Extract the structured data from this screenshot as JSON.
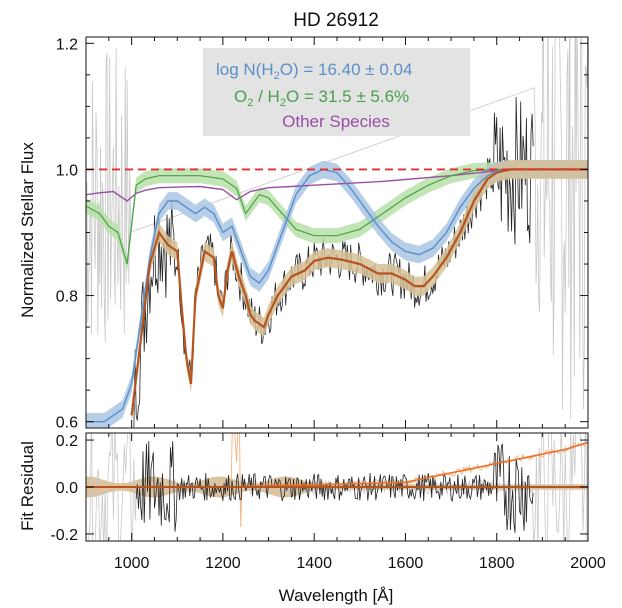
{
  "chart_data": {
    "type": "line",
    "title": "HD 26912",
    "xlabel": "Wavelength [Å]",
    "x_ticks": [
      1000,
      1200,
      1400,
      1600,
      1800,
      2000
    ],
    "xlim": [
      900,
      2000
    ],
    "colors": {
      "observed": "#222222",
      "observed_faint": "#c8c8c8",
      "h2o": "#5b8fc9",
      "h2o_band": "#a9c5e4",
      "o2": "#4aa04a",
      "o2_band": "#b9e0a8",
      "other": "#9b4fa6",
      "total": "#b5541e",
      "total_band": "#d6bf96",
      "residual_orange": "#e8722a",
      "residual_orange_faint": "#f5b98a",
      "unity": "#e03030",
      "legend_box": "#e3e3e3"
    },
    "legend": {
      "placement": "top-center",
      "h2o_prefix": "log N(H",
      "h2o_sub": "2",
      "h2o_suffix": "O) = 16.40 ± 0.04",
      "o2_prefix": "O",
      "o2_sub": "2",
      "o2_mid": " / H",
      "o2_sub2": "2",
      "o2_suffix": "O =   31.5 ±   5.6%",
      "other": "Other Species"
    },
    "panels": [
      {
        "name": "flux",
        "ylabel": "Normalized Stellar Flux",
        "ylim": [
          0.59,
          1.21
        ],
        "y_ticks": [
          0.6,
          0.8,
          1.0,
          1.2
        ],
        "y_tick_labels": [
          "0.6",
          "0.8",
          "1.0",
          "1.2"
        ],
        "unity_line": 1.0,
        "series": [
          {
            "key": "other_species",
            "x": [
              900,
              930,
              960,
              990,
              1010,
              1030,
              1060,
              1100,
              1150,
              1200,
              1230,
              1260,
              1300,
              1350,
              1400,
              1450,
              1500,
              1550,
              1600,
              1650,
              1700,
              1750,
              1800,
              1850,
              2000
            ],
            "y": [
              0.96,
              0.963,
              0.965,
              0.95,
              0.962,
              0.967,
              0.971,
              0.972,
              0.973,
              0.968,
              0.952,
              0.965,
              0.971,
              0.973,
              0.975,
              0.977,
              0.979,
              0.981,
              0.984,
              0.987,
              0.99,
              0.994,
              0.998,
              1.0,
              1.0
            ]
          },
          {
            "key": "o2",
            "x": [
              900,
              930,
              950,
              970,
              990,
              1010,
              1030,
              1060,
              1100,
              1150,
              1200,
              1230,
              1250,
              1280,
              1300,
              1330,
              1360,
              1400,
              1450,
              1500,
              1550,
              1600,
              1650,
              1700,
              1750,
              1800,
              2000
            ],
            "y": [
              0.942,
              0.93,
              0.91,
              0.9,
              0.85,
              0.975,
              0.985,
              0.99,
              0.99,
              0.99,
              0.985,
              0.97,
              0.93,
              0.96,
              0.955,
              0.93,
              0.905,
              0.895,
              0.895,
              0.905,
              0.93,
              0.955,
              0.975,
              0.99,
              0.998,
              1.0,
              1.0
            ],
            "band_halfwidth": 0.012
          },
          {
            "key": "h2o",
            "x": [
              900,
              940,
              980,
              1000,
              1020,
              1040,
              1060,
              1080,
              1100,
              1120,
              1140,
              1160,
              1180,
              1200,
              1220,
              1240,
              1260,
              1280,
              1300,
              1330,
              1360,
              1390,
              1420,
              1450,
              1480,
              1510,
              1540,
              1570,
              1600,
              1630,
              1660,
              1690,
              1720,
              1750,
              1780,
              1800,
              1820,
              2000
            ],
            "y": [
              0.6,
              0.6,
              0.62,
              0.66,
              0.76,
              0.86,
              0.93,
              0.95,
              0.95,
              0.94,
              0.93,
              0.94,
              0.93,
              0.9,
              0.91,
              0.87,
              0.83,
              0.82,
              0.84,
              0.9,
              0.96,
              0.99,
              1.0,
              0.995,
              0.97,
              0.94,
              0.91,
              0.885,
              0.87,
              0.865,
              0.875,
              0.9,
              0.94,
              0.97,
              0.99,
              0.998,
              1.0,
              1.0
            ],
            "band_halfwidth": 0.014
          },
          {
            "key": "total",
            "x": [
              1000,
              1020,
              1040,
              1060,
              1080,
              1100,
              1110,
              1120,
              1130,
              1140,
              1160,
              1180,
              1190,
              1200,
              1210,
              1220,
              1235,
              1250,
              1260,
              1270,
              1290,
              1300,
              1320,
              1350,
              1380,
              1400,
              1430,
              1460,
              1500,
              1540,
              1570,
              1600,
              1620,
              1640,
              1660,
              1690,
              1720,
              1750,
              1780,
              1800,
              1830,
              1860,
              2000
            ],
            "y": [
              0.61,
              0.73,
              0.85,
              0.9,
              0.88,
              0.87,
              0.78,
              0.7,
              0.66,
              0.8,
              0.87,
              0.86,
              0.8,
              0.78,
              0.84,
              0.87,
              0.83,
              0.8,
              0.77,
              0.76,
              0.75,
              0.77,
              0.8,
              0.83,
              0.84,
              0.855,
              0.86,
              0.857,
              0.85,
              0.835,
              0.835,
              0.825,
              0.815,
              0.815,
              0.83,
              0.86,
              0.9,
              0.95,
              0.985,
              0.995,
              1.0,
              1.0,
              1.0
            ],
            "band_halfwidth": 0.015
          }
        ]
      },
      {
        "name": "residual",
        "ylabel": "Fit Residual",
        "ylim": [
          -0.23,
          0.23
        ],
        "y_ticks": [
          -0.2,
          0.0,
          0.2
        ],
        "y_tick_labels": [
          "-0.2",
          "0.0",
          "0.2"
        ],
        "zero_line": 0.0,
        "orange_trend": {
          "x": [
            1200,
            1300,
            1400,
            1500,
            1600,
            1650,
            1700,
            1750,
            1800,
            1850,
            1900,
            1950,
            2000
          ],
          "y": [
            0.0,
            0.005,
            0.01,
            0.015,
            0.02,
            0.04,
            0.06,
            0.08,
            0.1,
            0.12,
            0.14,
            0.16,
            0.19
          ]
        }
      }
    ]
  }
}
